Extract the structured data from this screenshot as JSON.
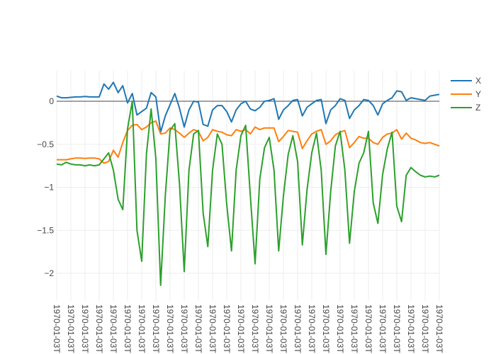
{
  "chart_data": {
    "type": "line",
    "title": "",
    "xlabel": "",
    "ylabel": "",
    "ylim": [
      -2.32,
      0.35
    ],
    "yticks": [
      0,
      -0.5,
      -1,
      -1.5,
      -2
    ],
    "ytick_labels": [
      "0",
      "−0.5",
      "−1",
      "−1.5",
      "−2"
    ],
    "xtick_labels": [
      "1970-01-03T",
      "1970-01-03T",
      "1970-01-03T",
      "1970-01-03T",
      "1970-01-03T",
      "1970-01-03T",
      "1970-01-03T",
      "1970-01-03T",
      "1970-01-03T",
      "1970-01-03T",
      "1970-01-03T",
      "1970-01-03T",
      "1970-01-03T",
      "1970-01-03T",
      "1970-01-03T",
      "1970-01-03T",
      "1970-01-03T",
      "1970-01-03T",
      "1970-01-03T",
      "1970-01-03T",
      "1970-01-03T",
      "1970-01-03T",
      "1970-01-03T",
      "1970-01-03T",
      "1970-01-03T",
      "1970-01-03T",
      "1970-01-03T",
      "1970-01-03T"
    ],
    "grid": true,
    "legend_position": "top-right",
    "series": [
      {
        "name": "X",
        "color": "#1f77b4",
        "values": [
          0.06,
          0.04,
          0.04,
          0.045,
          0.05,
          0.05,
          0.055,
          0.05,
          0.05,
          0.05,
          0.2,
          0.14,
          0.22,
          0.1,
          0.18,
          -0.02,
          0.09,
          -0.16,
          -0.12,
          -0.08,
          0.1,
          0.05,
          -0.36,
          -0.17,
          -0.04,
          0.09,
          -0.08,
          -0.3,
          -0.1,
          0,
          -0.01,
          -0.27,
          -0.29,
          -0.1,
          -0.05,
          -0.05,
          -0.12,
          -0.24,
          -0.1,
          -0.03,
          0,
          -0.09,
          -0.11,
          -0.07,
          0,
          0.01,
          0.03,
          -0.21,
          -0.1,
          -0.05,
          0.01,
          0.02,
          -0.17,
          -0.07,
          -0.03,
          0.01,
          0.02,
          -0.26,
          -0.1,
          -0.05,
          0.03,
          0.01,
          -0.2,
          -0.1,
          -0.05,
          0.02,
          0.01,
          -0.05,
          -0.16,
          -0.03,
          0.01,
          0.04,
          0.12,
          0.11,
          0.01,
          0.04,
          0.03,
          0.02,
          0.01,
          0.06,
          0.07,
          0.08
        ]
      },
      {
        "name": "Y",
        "color": "#ff7f0e",
        "values": [
          -0.68,
          -0.68,
          -0.68,
          -0.67,
          -0.66,
          -0.66,
          -0.665,
          -0.66,
          -0.66,
          -0.67,
          -0.72,
          -0.7,
          -0.57,
          -0.65,
          -0.48,
          -0.34,
          -0.28,
          -0.27,
          -0.33,
          -0.3,
          -0.25,
          -0.23,
          -0.38,
          -0.37,
          -0.31,
          -0.33,
          -0.37,
          -0.42,
          -0.37,
          -0.33,
          -0.35,
          -0.46,
          -0.42,
          -0.33,
          -0.35,
          -0.36,
          -0.39,
          -0.4,
          -0.33,
          -0.35,
          -0.33,
          -0.38,
          -0.3,
          -0.33,
          -0.31,
          -0.31,
          -0.31,
          -0.47,
          -0.41,
          -0.34,
          -0.35,
          -0.36,
          -0.55,
          -0.46,
          -0.38,
          -0.35,
          -0.33,
          -0.5,
          -0.46,
          -0.39,
          -0.36,
          -0.34,
          -0.54,
          -0.48,
          -0.41,
          -0.43,
          -0.43,
          -0.48,
          -0.5,
          -0.42,
          -0.38,
          -0.37,
          -0.33,
          -0.44,
          -0.37,
          -0.43,
          -0.45,
          -0.48,
          -0.49,
          -0.48,
          -0.5,
          -0.52
        ]
      },
      {
        "name": "Z",
        "color": "#2ca02c",
        "values": [
          -0.73,
          -0.74,
          -0.71,
          -0.73,
          -0.74,
          -0.74,
          -0.75,
          -0.74,
          -0.75,
          -0.74,
          -0.67,
          -0.6,
          -0.8,
          -1.14,
          -1.26,
          -0.32,
          0,
          -1.5,
          -1.86,
          -0.61,
          -0.09,
          -0.67,
          -2.14,
          -1.1,
          -0.34,
          -0.26,
          -0.96,
          -1.98,
          -0.8,
          -0.38,
          -0.34,
          -1.3,
          -1.69,
          -0.8,
          -0.38,
          -0.5,
          -1.2,
          -1.74,
          -0.8,
          -0.4,
          -0.28,
          -1.1,
          -1.89,
          -0.9,
          -0.54,
          -0.42,
          -0.8,
          -1.74,
          -1.1,
          -0.62,
          -0.4,
          -0.7,
          -1.67,
          -1.03,
          -0.6,
          -0.37,
          -0.8,
          -1.78,
          -1.05,
          -0.52,
          -0.35,
          -0.8,
          -1.65,
          -1.05,
          -0.72,
          -0.6,
          -0.35,
          -1.18,
          -1.42,
          -0.85,
          -0.55,
          -0.36,
          -1.22,
          -1.4,
          -0.86,
          -0.77,
          -0.82,
          -0.86,
          -0.88,
          -0.87,
          -0.88,
          -0.86
        ]
      }
    ]
  }
}
